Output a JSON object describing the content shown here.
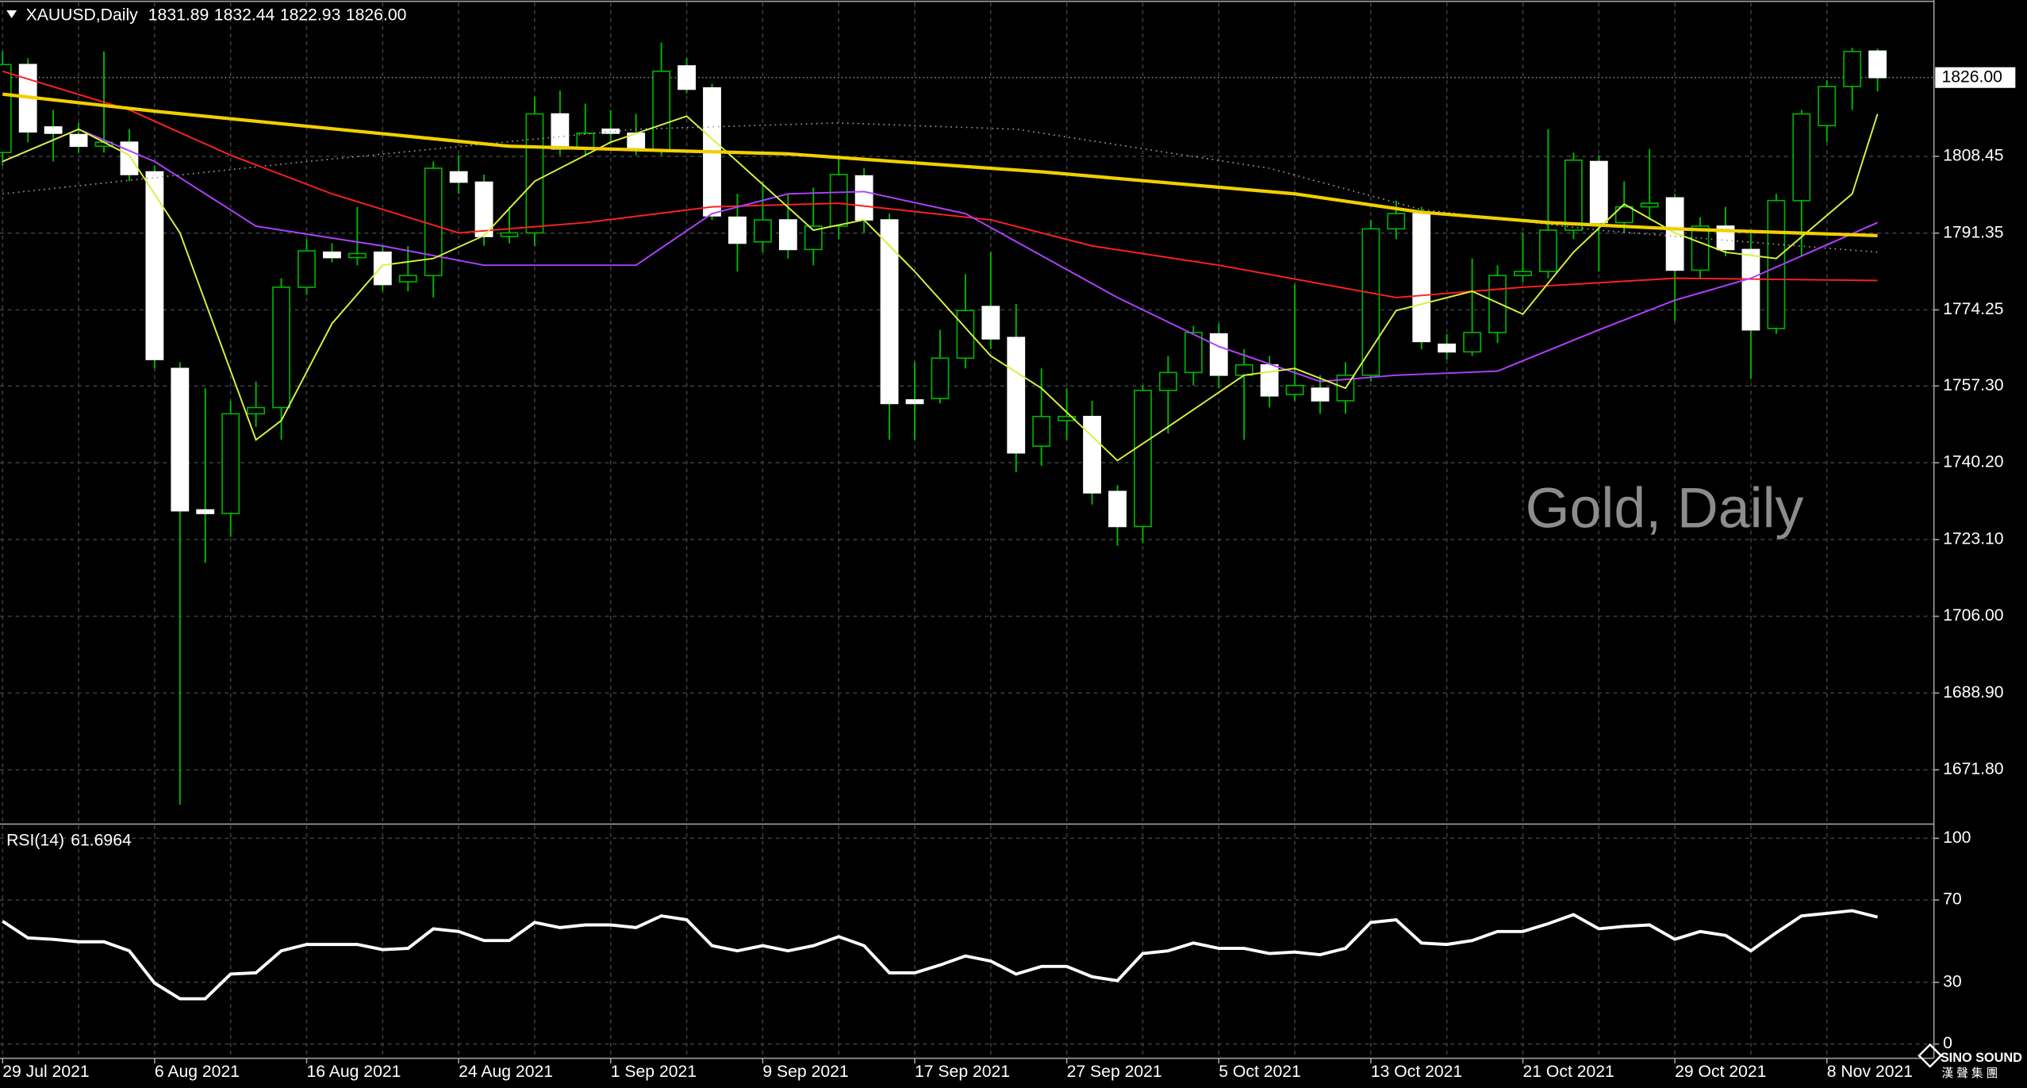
{
  "chart_data": {
    "type": "candlestick",
    "title": "XAUUSD,Daily",
    "ohlc_labels": [
      "1831.89",
      "1832.44",
      "1822.93",
      "1826.00"
    ],
    "watermark": "Gold, Daily",
    "logo": [
      "SINO SOUND",
      "漢 聲 集 團"
    ],
    "colors": {
      "up": "#000000",
      "down": "#ffffff",
      "wick": "#00b400"
    },
    "grid": true,
    "categories": [
      "29 Jul 2021",
      null,
      null,
      null,
      null,
      null,
      "6 Aug 2021",
      null,
      null,
      null,
      null,
      null,
      "16 Aug 2021",
      null,
      null,
      null,
      null,
      null,
      "24 Aug 2021",
      null,
      null,
      null,
      null,
      null,
      "1 Sep 2021",
      null,
      null,
      null,
      null,
      null,
      "9 Sep 2021",
      null,
      null,
      null,
      null,
      null,
      "17 Sep 2021",
      null,
      null,
      null,
      null,
      null,
      "27 Sep 2021",
      null,
      null,
      null,
      null,
      null,
      "5 Oct 2021",
      null,
      null,
      null,
      null,
      null,
      "13 Oct 2021",
      null,
      null,
      null,
      null,
      null,
      "21 Oct 2021",
      null,
      null,
      null,
      null,
      null,
      "29 Oct 2021",
      null,
      null,
      null,
      null,
      null,
      "8 Nov 2021",
      null,
      null
    ],
    "open": [
      1809.3,
      1828.9,
      1815.0,
      1813.3,
      1810.7,
      1811.6,
      1805.0,
      1761.2,
      1729.7,
      1728.9,
      1751.1,
      1752.5,
      1779.3,
      1787.1,
      1785.9,
      1787.1,
      1780.5,
      1781.9,
      1805.0,
      1802.7,
      1790.6,
      1791.4,
      1817.9,
      1810.1,
      1814.5,
      1813.6,
      1809.9,
      1828.6,
      1823.7,
      1794.9,
      1789.4,
      1794.3,
      1787.7,
      1792.9,
      1804.1,
      1794.3,
      1754.2,
      1754.5,
      1763.5,
      1775.0,
      1768.1,
      1743.9,
      1749.6,
      1750.5,
      1733.8,
      1726.0,
      1756.3,
      1760.3,
      1768.9,
      1759.7,
      1762.0,
      1755.4,
      1756.8,
      1754.0,
      1759.7,
      1792.3,
      1795.7,
      1766.6,
      1764.9,
      1769.2,
      1781.9,
      1782.8,
      1792.0,
      1807.3,
      1793.7,
      1797.2,
      1799.2,
      1783.1,
      1792.9,
      1787.7,
      1770.1,
      1798.6,
      1815.3,
      1824.0,
      1831.89
    ],
    "high": [
      1831.8,
      1830.3,
      1818.8,
      1815.9,
      1831.8,
      1814.5,
      1806.4,
      1762.6,
      1756.8,
      1754.0,
      1758.3,
      1781.3,
      1790.0,
      1789.1,
      1797.2,
      1788.5,
      1788.5,
      1807.3,
      1808.7,
      1804.4,
      1797.2,
      1821.7,
      1823.1,
      1820.2,
      1818.8,
      1817.9,
      1833.8,
      1830.3,
      1824.6,
      1800.1,
      1802.9,
      1800.1,
      1801.5,
      1808.7,
      1805.8,
      1795.7,
      1762.6,
      1769.8,
      1782.2,
      1787.1,
      1775.6,
      1761.2,
      1756.8,
      1754.0,
      1735.2,
      1757.4,
      1764.0,
      1770.7,
      1771.2,
      1765.5,
      1764.0,
      1779.9,
      1759.7,
      1762.6,
      1794.3,
      1798.6,
      1797.2,
      1768.9,
      1785.7,
      1784.2,
      1791.4,
      1814.5,
      1809.3,
      1808.7,
      1802.9,
      1810.1,
      1800.1,
      1794.9,
      1797.2,
      1791.4,
      1800.1,
      1818.8,
      1825.4,
      1832.6,
      1832.44
    ],
    "low": [
      1806.4,
      1811.6,
      1807.3,
      1809.3,
      1809.3,
      1802.9,
      1761.2,
      1664.0,
      1717.9,
      1723.7,
      1748.2,
      1745.3,
      1777.6,
      1784.8,
      1784.2,
      1778.4,
      1778.4,
      1777.0,
      1800.1,
      1788.5,
      1789.1,
      1788.5,
      1808.7,
      1808.7,
      1811.6,
      1808.7,
      1808.7,
      1822.5,
      1794.3,
      1782.8,
      1787.1,
      1785.7,
      1784.2,
      1790.0,
      1791.4,
      1745.3,
      1745.3,
      1753.4,
      1761.2,
      1765.5,
      1738.1,
      1739.5,
      1745.3,
      1730.9,
      1721.7,
      1722.3,
      1746.7,
      1757.4,
      1756.8,
      1745.3,
      1752.5,
      1754.0,
      1751.1,
      1751.1,
      1758.3,
      1790.0,
      1765.5,
      1763.2,
      1764.0,
      1766.9,
      1780.5,
      1781.3,
      1790.0,
      1782.8,
      1791.4,
      1794.3,
      1771.8,
      1781.3,
      1786.2,
      1758.9,
      1768.9,
      1786.2,
      1811.6,
      1818.8,
      1822.93
    ],
    "close": [
      1828.9,
      1813.9,
      1813.6,
      1810.7,
      1811.6,
      1804.4,
      1763.2,
      1729.5,
      1728.9,
      1751.1,
      1752.5,
      1779.3,
      1787.4,
      1785.9,
      1786.8,
      1779.9,
      1781.9,
      1805.8,
      1802.7,
      1790.6,
      1791.4,
      1817.9,
      1810.1,
      1813.6,
      1813.6,
      1809.9,
      1827.4,
      1823.4,
      1795.2,
      1789.1,
      1794.3,
      1787.7,
      1792.9,
      1804.4,
      1794.3,
      1753.4,
      1753.4,
      1763.5,
      1774.1,
      1767.8,
      1742.4,
      1750.5,
      1750.5,
      1733.5,
      1726.0,
      1756.3,
      1760.3,
      1769.2,
      1759.7,
      1762.0,
      1755.1,
      1757.4,
      1754.0,
      1759.7,
      1792.3,
      1795.7,
      1767.2,
      1764.9,
      1769.2,
      1781.9,
      1782.8,
      1792.0,
      1807.6,
      1793.7,
      1797.2,
      1798.0,
      1783.1,
      1792.9,
      1787.7,
      1769.8,
      1798.6,
      1817.9,
      1824.0,
      1831.8,
      1826.0
    ],
    "ylim": [
      1660.0,
      1842.7
    ],
    "yticks": [
      {
        "value": 1671.8,
        "label": "1671.80"
      },
      {
        "value": 1688.9,
        "label": "1688.90"
      },
      {
        "value": 1706,
        "label": "1706.00"
      },
      {
        "value": 1723.1,
        "label": "1723.10"
      },
      {
        "value": 1740.2,
        "label": "1740.20"
      },
      {
        "value": 1757.3,
        "label": "1757.30"
      },
      1774.25,
      1791.35,
      1808.45
    ],
    "overlays": [
      {
        "color": "#a0a0a0",
        "style": "dotted",
        "x": [
          0,
          12,
          25,
          33,
          40,
          50,
          56,
          63,
          74
        ],
        "values": [
          1800.1,
          1807.3,
          1814.5,
          1815.9,
          1814.5,
          1805.8,
          1796.6,
          1792.0,
          1787.1
        ]
      },
      {
        "color": "#ff2020",
        "style": "thin",
        "x": [
          0,
          5,
          9,
          13,
          18,
          23,
          28,
          33,
          39,
          43,
          48,
          55,
          60,
          66,
          74
        ],
        "values": [
          1827.4,
          1818.8,
          1808.7,
          1800.1,
          1791.4,
          1793.7,
          1797.2,
          1798.0,
          1794.3,
          1788.5,
          1784.2,
          1777.0,
          1779.3,
          1781.3,
          1780.8
        ]
      },
      {
        "color": "#b040ff",
        "style": "thin",
        "x": [
          0,
          3,
          6,
          10,
          15,
          19,
          25,
          28,
          31,
          34,
          38,
          44,
          48,
          52,
          55,
          59,
          63,
          66,
          69,
          74
        ],
        "values": [
          1807.3,
          1814.5,
          1807.3,
          1792.9,
          1788.5,
          1784.2,
          1784.2,
          1795.7,
          1800.1,
          1800.6,
          1795.7,
          1777.0,
          1766.1,
          1758.3,
          1759.7,
          1760.6,
          1769.8,
          1776.4,
          1781.3,
          1793.7
        ]
      },
      {
        "color": "#d8f040",
        "style": "thin",
        "x": [
          0,
          3,
          5,
          7,
          10,
          11,
          13,
          15,
          17,
          19,
          21,
          24,
          27,
          29,
          32,
          34,
          36,
          39,
          41,
          44,
          46,
          49,
          51,
          53,
          55,
          58,
          60,
          62,
          64,
          66,
          68,
          70,
          73,
          74
        ],
        "values": [
          1807.3,
          1814.5,
          1808.7,
          1791.4,
          1745.3,
          1749.6,
          1771.2,
          1784.2,
          1785.7,
          1790.8,
          1802.9,
          1811.6,
          1817.4,
          1807.3,
          1792.0,
          1794.3,
          1782.8,
          1764.0,
          1756.8,
          1740.7,
          1748.2,
          1759.7,
          1761.2,
          1756.8,
          1774.1,
          1778.4,
          1773.3,
          1787.1,
          1797.8,
          1791.4,
          1787.1,
          1785.7,
          1800.1,
          1817.9
        ]
      },
      {
        "color": "#f0d000",
        "style": "thick",
        "x": [
          0,
          6,
          20,
          31,
          41,
          51,
          56,
          61,
          66,
          74
        ],
        "values": [
          1822.3,
          1818.5,
          1810.7,
          1809.0,
          1805.0,
          1800.1,
          1796.0,
          1793.7,
          1792.3,
          1790.8
        ]
      }
    ],
    "rsi": {
      "label": "RSI(14)",
      "color": "#ffffff",
      "ylim": [
        0,
        100
      ],
      "yticks": [
        0,
        30,
        70,
        100
      ],
      "values": [
        59.7,
        51.6,
        50.9,
        49.7,
        49.7,
        45.3,
        29.6,
        22.0,
        22.0,
        34.0,
        34.6,
        45.3,
        48.4,
        48.4,
        48.4,
        45.9,
        46.5,
        56.0,
        54.7,
        50.3,
        50.3,
        59.1,
        56.6,
        57.9,
        57.9,
        56.6,
        62.3,
        60.4,
        47.8,
        45.3,
        47.8,
        45.3,
        47.8,
        52.2,
        47.8,
        34.6,
        34.6,
        38.4,
        42.8,
        40.3,
        34.0,
        37.7,
        37.7,
        32.7,
        30.8,
        44.0,
        45.3,
        49.1,
        46.5,
        46.5,
        44.0,
        44.7,
        43.4,
        46.5,
        59.1,
        60.4,
        49.1,
        48.4,
        50.3,
        54.7,
        54.7,
        58.5,
        62.9,
        56.0,
        57.2,
        57.9,
        50.9,
        54.7,
        52.8,
        45.3,
        54.1,
        62.3,
        63.5,
        64.8,
        61.6964
      ]
    }
  }
}
